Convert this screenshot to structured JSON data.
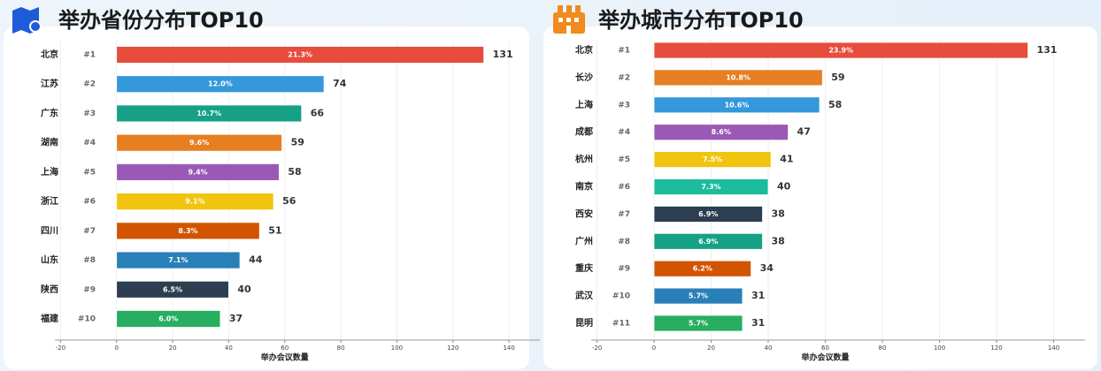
{
  "chart_data": [
    {
      "type": "barh",
      "title": "举办省份分布TOP10",
      "xlabel": "举办会议数量",
      "categories": [
        "北京",
        "江苏",
        "广东",
        "湖南",
        "上海",
        "浙江",
        "四川",
        "山东",
        "陕西",
        "福建"
      ],
      "ranks": [
        "#1",
        "#2",
        "#3",
        "#4",
        "#5",
        "#6",
        "#7",
        "#8",
        "#9",
        "#10"
      ],
      "values": [
        131,
        74,
        66,
        59,
        58,
        56,
        51,
        44,
        40,
        37
      ],
      "percent_labels": [
        "21.3%",
        "12.0%",
        "10.7%",
        "9.6%",
        "9.4%",
        "9.1%",
        "8.3%",
        "7.1%",
        "6.5%",
        "6.0%"
      ],
      "colors": [
        "#e74c3c",
        "#3498db",
        "#16a085",
        "#e67e22",
        "#9b59b6",
        "#f1c40f",
        "#d35400",
        "#2980b9",
        "#2c3e50",
        "#27ae60"
      ],
      "xlim": [
        -22,
        151
      ],
      "xticks": [
        -20,
        0,
        20,
        40,
        60,
        80,
        100,
        120,
        140
      ],
      "grid": true
    },
    {
      "type": "barh",
      "title": "举办城市分布TOP10",
      "xlabel": "举办会议数量",
      "categories": [
        "北京",
        "长沙",
        "上海",
        "成都",
        "杭州",
        "南京",
        "西安",
        "广州",
        "重庆",
        "武汉",
        "昆明"
      ],
      "ranks": [
        "#1",
        "#2",
        "#3",
        "#4",
        "#5",
        "#6",
        "#7",
        "#8",
        "#9",
        "#10",
        "#11"
      ],
      "values": [
        131,
        59,
        58,
        47,
        41,
        40,
        38,
        38,
        34,
        31,
        31
      ],
      "percent_labels": [
        "23.9%",
        "10.8%",
        "10.6%",
        "8.6%",
        "7.5%",
        "7.3%",
        "6.9%",
        "6.9%",
        "6.2%",
        "5.7%",
        "5.7%"
      ],
      "colors": [
        "#e74c3c",
        "#e67e22",
        "#3498db",
        "#9b59b6",
        "#f1c40f",
        "#1abc9c",
        "#2c3e50",
        "#16a085",
        "#d35400",
        "#2980b9",
        "#27ae60"
      ],
      "xlim": [
        -22,
        151
      ],
      "xticks": [
        -20,
        0,
        20,
        40,
        60,
        80,
        100,
        120,
        140
      ],
      "grid": true
    }
  ]
}
